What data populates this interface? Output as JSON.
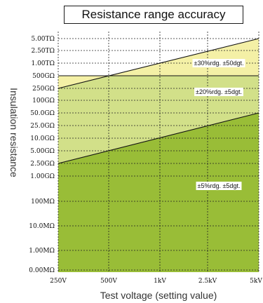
{
  "chart_data": {
    "type": "area",
    "title": "Resistance range accuracy",
    "xlabel": "Test voltage (setting value)",
    "ylabel": "Insulation resistance",
    "x_ticks": [
      "250V",
      "500V",
      "1kV",
      "2.5kV",
      "5kV"
    ],
    "y_ticks": [
      "0.00MΩ",
      "1.00MΩ",
      "10.0MΩ",
      "100MΩ",
      "1.00GΩ",
      "2.50GΩ",
      "5.00GΩ",
      "10.0GΩ",
      "25.0GΩ",
      "50.0GΩ",
      "100GΩ",
      "250GΩ",
      "500GΩ",
      "1.00TΩ",
      "2.50TΩ",
      "5.00TΩ"
    ],
    "grid": "dashed",
    "boundaries": [
      {
        "name": "upper",
        "x": [
          "250V",
          "5kV"
        ],
        "y": [
          "250GΩ",
          "5.00TΩ"
        ]
      },
      {
        "name": "middle",
        "x": [
          "250V",
          "5kV"
        ],
        "y": [
          "500GΩ",
          "500GΩ"
        ]
      },
      {
        "name": "lower",
        "x": [
          "250V",
          "5kV"
        ],
        "y": [
          "2.50GΩ",
          "50.0GΩ"
        ]
      }
    ],
    "zones": [
      {
        "label": "±30%rdg. ±50dgt.",
        "color": "#f4f0a6"
      },
      {
        "label": "±20%rdg. ±5dgt.",
        "color": "#d2e089"
      },
      {
        "label": "±5%rdg. ±5dgt.",
        "color": "#99bd37"
      }
    ]
  }
}
